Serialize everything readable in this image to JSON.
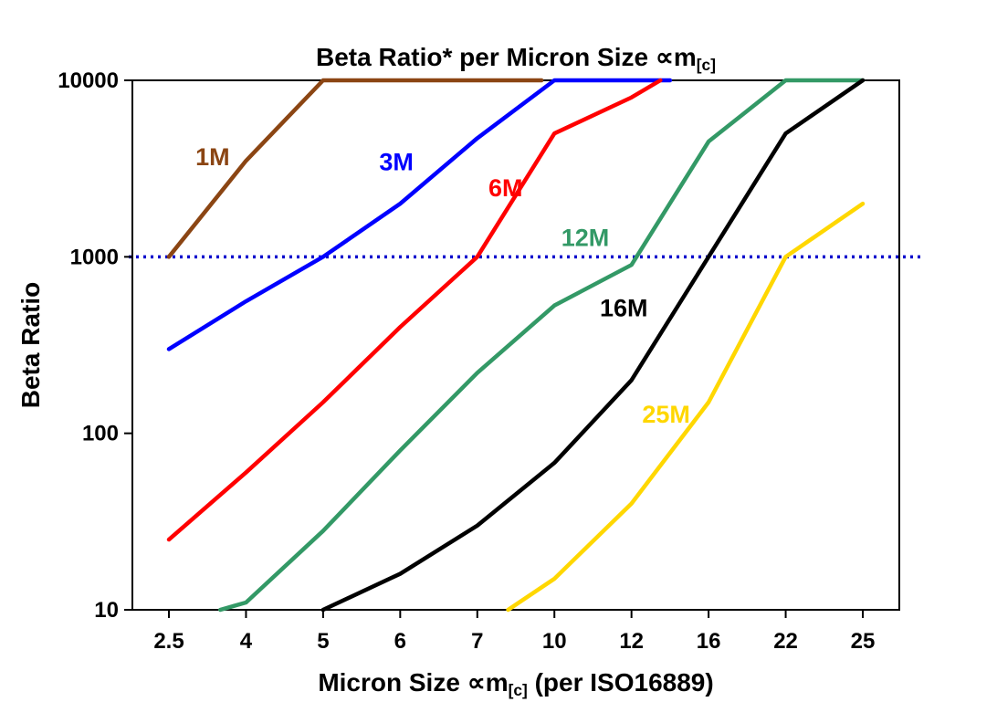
{
  "chart_data": {
    "type": "line",
    "title": "Beta Ratio* per Micron Size ∝m[c]",
    "title_parts": {
      "pre": "Beta Ratio* per Micron Size ",
      "sym": "∝m",
      "sub": "[c]"
    },
    "xlabel_parts": {
      "pre": "Micron Size ",
      "sym": "∝m",
      "sub": "[c]",
      "post": " (per ISO16889)"
    },
    "ylabel": "Beta Ratio",
    "y_scale": "log",
    "ylim": [
      10,
      10000
    ],
    "x_categories": [
      2.5,
      4,
      5,
      6,
      7,
      10,
      12,
      16,
      22,
      25
    ],
    "x_tick_labels": [
      "2.5",
      "4",
      "5",
      "6",
      "7",
      "10",
      "12",
      "16",
      "22",
      "25"
    ],
    "y_ticks": [
      10,
      100,
      1000,
      10000
    ],
    "y_tick_labels": [
      "10",
      "100",
      "1000",
      "10000"
    ],
    "grid": "off",
    "legend_position": "inline-labels",
    "reference_line": {
      "y": 1000,
      "color": "#0000CC",
      "style": "dotted"
    },
    "series": [
      {
        "name": "1M",
        "color": "#8B4513",
        "label_pos": {
          "x": 3.35,
          "y": 3300
        },
        "points": [
          [
            2.5,
            1000
          ],
          [
            4,
            3500
          ],
          [
            5,
            10000
          ],
          [
            9.5,
            10000
          ]
        ]
      },
      {
        "name": "3M",
        "color": "#0000FF",
        "label_pos": {
          "x": 5.95,
          "y": 3100
        },
        "points": [
          [
            2.5,
            300
          ],
          [
            4,
            560
          ],
          [
            5,
            1000
          ],
          [
            6,
            2000
          ],
          [
            7,
            4700
          ],
          [
            10,
            10000
          ],
          [
            14,
            10000
          ]
        ]
      },
      {
        "name": "6M",
        "color": "#FF0000",
        "label_pos": {
          "x": 8.1,
          "y": 2200
        },
        "points": [
          [
            2.5,
            25
          ],
          [
            4,
            60
          ],
          [
            5,
            150
          ],
          [
            6,
            400
          ],
          [
            7,
            1000
          ],
          [
            10,
            5000
          ],
          [
            12,
            8000
          ],
          [
            13.5,
            10000
          ]
        ]
      },
      {
        "name": "12M",
        "color": "#339966",
        "label_pos": {
          "x": 10.8,
          "y": 1150
        },
        "points": [
          [
            3.5,
            10
          ],
          [
            4,
            11
          ],
          [
            5,
            28
          ],
          [
            6,
            80
          ],
          [
            7,
            220
          ],
          [
            10,
            530
          ],
          [
            12,
            900
          ],
          [
            16,
            4500
          ],
          [
            22,
            10000
          ],
          [
            25,
            10000
          ]
        ]
      },
      {
        "name": "16M",
        "color": "#000000",
        "label_pos": {
          "x": 11.8,
          "y": 460
        },
        "points": [
          [
            5,
            10
          ],
          [
            6,
            16
          ],
          [
            7,
            30
          ],
          [
            10,
            68
          ],
          [
            12,
            200
          ],
          [
            16,
            1000
          ],
          [
            22,
            5000
          ],
          [
            25,
            10000
          ]
        ]
      },
      {
        "name": "25M",
        "color": "#FFD700",
        "label_pos": {
          "x": 13.8,
          "y": 115
        },
        "points": [
          [
            8.2,
            10
          ],
          [
            10,
            15
          ],
          [
            12,
            40
          ],
          [
            16,
            150
          ],
          [
            22,
            1000
          ],
          [
            25,
            2000
          ]
        ]
      }
    ]
  }
}
